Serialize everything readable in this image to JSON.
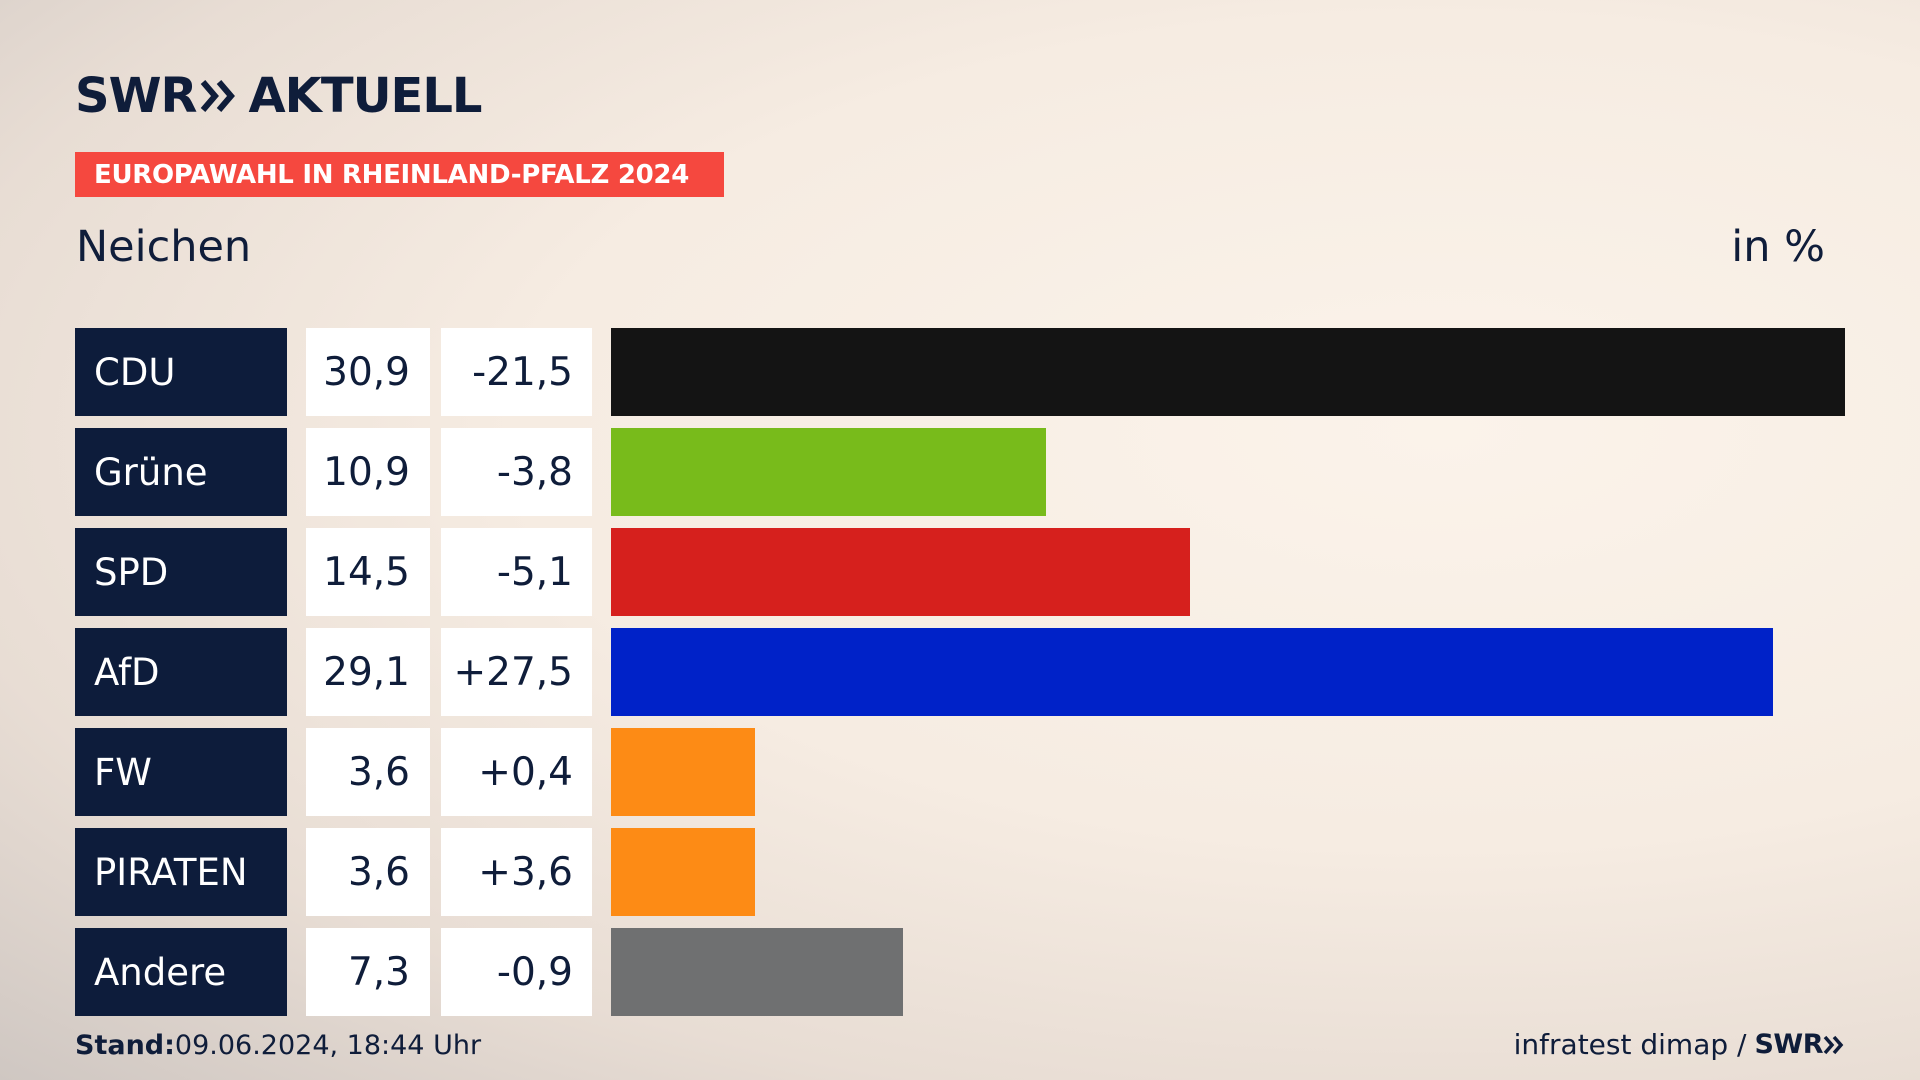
{
  "logo": {
    "brand": "SWR",
    "name": "AKTUELL"
  },
  "banner": "EUROPAWAHL IN RHEINLAND-PFALZ 2024",
  "region": "Neichen",
  "unit": "in %",
  "colors": {
    "party_cell": "#0d1c3b",
    "banner": "#f5483f"
  },
  "chart_data": {
    "type": "bar",
    "orientation": "horizontal",
    "categories": [
      "CDU",
      "Grüne",
      "SPD",
      "AfD",
      "FW",
      "PIRATEN",
      "Andere"
    ],
    "values": [
      30.9,
      10.9,
      14.5,
      29.1,
      3.6,
      3.6,
      7.3
    ],
    "value_labels": [
      "30,9",
      "10,9",
      "14,5",
      "29,1",
      "3,6",
      "3,6",
      "7,3"
    ],
    "changes": [
      -21.5,
      -3.8,
      -5.1,
      27.5,
      0.4,
      3.6,
      -0.9
    ],
    "change_labels": [
      "-21,5",
      "-3,8",
      "-5,1",
      "+27,5",
      "+0,4",
      "+3,6",
      "-0,9"
    ],
    "bar_colors": [
      "#141414",
      "#78bb1b",
      "#d6201d",
      "#0022c8",
      "#fd8b15",
      "#fd8b15",
      "#6f7071"
    ],
    "ylabel": "in %",
    "grid": false
  },
  "footer": {
    "stand_label": "Stand:",
    "stand_value": "09.06.2024, 18:44 Uhr",
    "source": "infratest dimap /",
    "source_brand": "SWR"
  }
}
